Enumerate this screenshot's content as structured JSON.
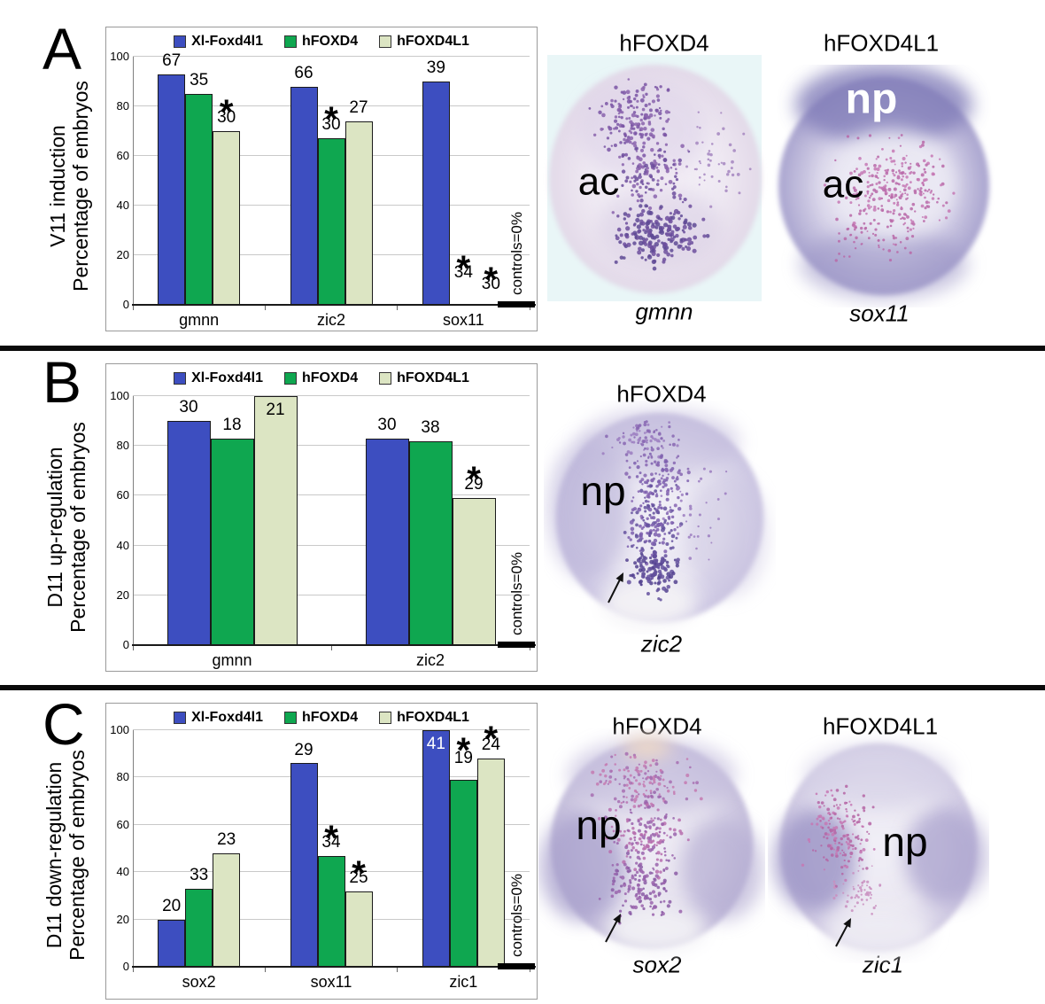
{
  "figure": {
    "panels": [
      {
        "letter": "A",
        "ylabel_line1": "V11 induction",
        "ylabel_line2": "Percentage of embryos",
        "images": [
          {
            "title": "hFOXD4",
            "caption": "gmnn",
            "labels": [
              {
                "text": "ac",
                "color": "#000000"
              }
            ]
          },
          {
            "title": "hFOXD4L1",
            "caption": "sox11",
            "labels": [
              {
                "text": "np",
                "color": "#ffffff"
              },
              {
                "text": "ac",
                "color": "#000000"
              }
            ]
          }
        ]
      },
      {
        "letter": "B",
        "ylabel_line1": "D11 up-regulation",
        "ylabel_line2": "Percentage of embryos",
        "images": [
          {
            "title": "hFOXD4",
            "caption": "zic2",
            "labels": [
              {
                "text": "np",
                "color": "#000000"
              }
            ]
          }
        ]
      },
      {
        "letter": "C",
        "ylabel_line1": "D11 down-regulation",
        "ylabel_line2": "Percentage of embryos",
        "images": [
          {
            "title": "hFOXD4",
            "caption": "sox2",
            "labels": [
              {
                "text": "np",
                "color": "#000000"
              }
            ]
          },
          {
            "title": "hFOXD4L1",
            "caption": "zic1",
            "labels": [
              {
                "text": "np",
                "color": "#000000"
              }
            ]
          }
        ]
      }
    ]
  },
  "colors": {
    "blue": "#3D4EC0",
    "green": "#0FA750",
    "cream": "#DCE5C3"
  },
  "chart_data": [
    {
      "type": "bar",
      "panel": "A",
      "title": "",
      "ylabel": "V11 induction / Percentage of embryos",
      "ylim": [
        0,
        100
      ],
      "yticks": [
        0,
        20,
        40,
        60,
        80,
        100
      ],
      "grid": true,
      "legend_position": "top",
      "categories": [
        "gmnn",
        "zic2",
        "sox11"
      ],
      "series": [
        {
          "name": "Xl-Foxd4l1",
          "color": "#3D4EC0",
          "values": [
            93,
            88,
            90
          ],
          "n_labels": [
            "67",
            "66",
            "39"
          ],
          "asterisk": [
            false,
            false,
            false
          ]
        },
        {
          "name": "hFOXD4",
          "color": "#0FA750",
          "values": [
            85,
            67,
            0
          ],
          "n_labels": [
            "35",
            "30",
            "34"
          ],
          "asterisk": [
            false,
            true,
            true
          ],
          "n_y": [
            null,
            null,
            10
          ],
          "star_y": [
            null,
            null,
            17
          ]
        },
        {
          "name": "hFOXD4L1",
          "color": "#DCE5C3",
          "values": [
            70,
            74,
            0
          ],
          "n_labels": [
            "30",
            "27",
            "30"
          ],
          "asterisk": [
            true,
            false,
            true
          ],
          "n_y": [
            null,
            null,
            5.5
          ],
          "star_y": [
            null,
            null,
            12.5
          ]
        }
      ],
      "note": "controls=0%"
    },
    {
      "type": "bar",
      "panel": "B",
      "title": "",
      "ylabel": "D11 up-regulation / Percentage of embryos",
      "ylim": [
        0,
        100
      ],
      "yticks": [
        0,
        20,
        40,
        60,
        80,
        100
      ],
      "grid": true,
      "legend_position": "top",
      "categories": [
        "gmnn",
        "zic2"
      ],
      "series": [
        {
          "name": "Xl-Foxd4l1",
          "color": "#3D4EC0",
          "values": [
            90,
            83
          ],
          "n_labels": [
            "30",
            "30"
          ],
          "asterisk": [
            false,
            false
          ]
        },
        {
          "name": "hFOXD4",
          "color": "#0FA750",
          "values": [
            83,
            82
          ],
          "n_labels": [
            "18",
            "38"
          ],
          "asterisk": [
            false,
            false
          ]
        },
        {
          "name": "hFOXD4L1",
          "color": "#DCE5C3",
          "values": [
            100,
            59
          ],
          "n_labels": [
            "21",
            "29"
          ],
          "asterisk": [
            false,
            true
          ],
          "inside": [
            true,
            false
          ],
          "inside_color": "#000000"
        }
      ],
      "note": "controls=0%"
    },
    {
      "type": "bar",
      "panel": "C",
      "title": "",
      "ylabel": "D11 down-regulation / Percentage of embryos",
      "ylim": [
        0,
        100
      ],
      "yticks": [
        0,
        20,
        40,
        60,
        80,
        100
      ],
      "grid": true,
      "legend_position": "top",
      "categories": [
        "sox2",
        "sox11",
        "zic1"
      ],
      "series": [
        {
          "name": "Xl-Foxd4l1",
          "color": "#3D4EC0",
          "values": [
            20,
            86,
            100
          ],
          "n_labels": [
            "20",
            "29",
            "41"
          ],
          "asterisk": [
            false,
            false,
            false
          ],
          "inside": [
            false,
            false,
            true
          ],
          "inside_color": "#ffffff"
        },
        {
          "name": "hFOXD4",
          "color": "#0FA750",
          "values": [
            33,
            47,
            79
          ],
          "n_labels": [
            "33",
            "34",
            "19"
          ],
          "asterisk": [
            false,
            true,
            true
          ],
          "n_y": [
            null,
            null,
            85
          ],
          "star_y": [
            null,
            null,
            94
          ]
        },
        {
          "name": "hFOXD4L1",
          "color": "#DCE5C3",
          "values": [
            48,
            32,
            88
          ],
          "n_labels": [
            "23",
            "25",
            "24"
          ],
          "asterisk": [
            false,
            true,
            true
          ],
          "star_y": [
            null,
            null,
            99
          ]
        }
      ],
      "note": "controls=0%"
    }
  ]
}
